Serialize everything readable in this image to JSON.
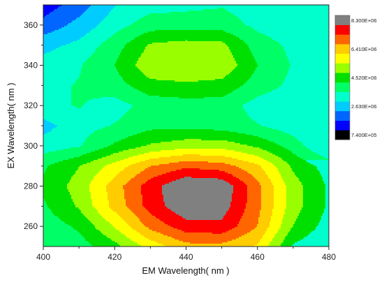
{
  "chart_data": {
    "type": "heatmap",
    "title": "",
    "xlabel": "EM Wavelength( nm )",
    "ylabel": "EX Wavelength( nm )",
    "xlim": [
      400,
      480
    ],
    "ylim": [
      250,
      370
    ],
    "x_ticks": [
      "400",
      "420",
      "440",
      "460",
      "480"
    ],
    "x_tick_values": [
      400,
      420,
      440,
      460,
      480
    ],
    "y_ticks": [
      "260",
      "280",
      "300",
      "320",
      "340",
      "360"
    ],
    "y_tick_values": [
      260,
      280,
      300,
      320,
      340,
      360
    ],
    "x": [
      400,
      410,
      420,
      430,
      440,
      450,
      460,
      470,
      480
    ],
    "y": [
      250,
      260,
      270,
      280,
      290,
      300,
      310,
      320,
      330,
      340,
      350,
      360,
      370
    ],
    "z": [
      [
        3.3,
        3.6,
        4.3,
        5.4,
        6.2,
        6.2,
        5.7,
        3.8,
        3.3
      ],
      [
        3.5,
        4.0,
        5.2,
        6.6,
        7.4,
        7.5,
        6.4,
        4.5,
        3.6
      ],
      [
        3.8,
        4.6,
        6.0,
        7.3,
        8.2,
        8.0,
        6.6,
        4.8,
        3.8
      ],
      [
        4.0,
        4.8,
        6.1,
        7.4,
        8.3,
        8.2,
        6.6,
        4.8,
        3.8
      ],
      [
        3.8,
        4.5,
        5.4,
        6.4,
        6.9,
        6.7,
        5.9,
        4.4,
        3.6
      ],
      [
        2.9,
        3.2,
        4.0,
        4.6,
        4.9,
        4.9,
        4.4,
        3.6,
        2.5
      ],
      [
        2.4,
        3.0,
        3.3,
        3.7,
        3.7,
        3.6,
        3.3,
        2.9,
        2.3
      ],
      [
        3.1,
        3.3,
        3.0,
        3.5,
        3.6,
        3.6,
        3.0,
        2.7,
        2.6
      ],
      [
        3.1,
        3.3,
        3.6,
        4.3,
        4.4,
        4.3,
        3.6,
        3.1,
        2.9
      ],
      [
        2.9,
        3.2,
        3.9,
        5.0,
        5.1,
        5.0,
        3.9,
        3.2,
        2.9
      ],
      [
        2.4,
        2.8,
        3.6,
        4.6,
        4.8,
        4.7,
        3.6,
        3.1,
        2.9
      ],
      [
        1.6,
        2.2,
        3.0,
        3.6,
        3.6,
        3.6,
        3.1,
        2.8,
        2.7
      ],
      [
        1.0,
        1.7,
        2.6,
        3.0,
        3.1,
        3.2,
        2.9,
        2.8,
        2.7
      ]
    ],
    "z_unit_multiplier": 1000000,
    "colorbar": {
      "colors": [
        "#000000",
        "#0000ff",
        "#0066ff",
        "#00ccff",
        "#00ffcc",
        "#00ff66",
        "#00e000",
        "#99ff00",
        "#ffff00",
        "#ffcc00",
        "#ff6600",
        "#ff0000",
        "#808080"
      ],
      "boundaries": [
        0.74,
        1.37,
        2.0,
        2.63,
        3.26,
        3.89,
        4.52,
        5.15,
        5.78,
        6.41,
        7.04,
        7.67,
        8.3
      ],
      "labels": [
        "8.300E+06",
        "6.410E+06",
        "4.520E+06",
        "2.630E+06",
        "7.400E+05"
      ],
      "label_values": [
        8.3,
        6.41,
        4.52,
        2.63,
        0.74
      ],
      "placement": "right"
    }
  }
}
